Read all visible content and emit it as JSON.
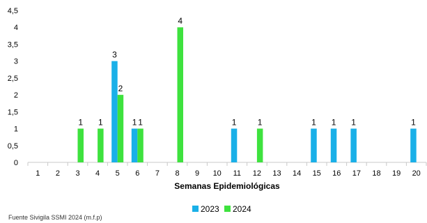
{
  "chart_data": {
    "type": "bar",
    "title": "",
    "xlabel": "Semanas Epidemiológicas",
    "ylabel": "",
    "ylim": [
      0,
      4.5
    ],
    "y_ticks": [
      "0",
      "0,5",
      "1",
      "1,5",
      "2",
      "2,5",
      "3",
      "3,5",
      "4",
      "4,5"
    ],
    "categories": [
      "1",
      "2",
      "3",
      "4",
      "5",
      "6",
      "7",
      "8",
      "9",
      "10",
      "11",
      "12",
      "13",
      "14",
      "15",
      "16",
      "17",
      "18",
      "19",
      "20"
    ],
    "series": [
      {
        "name": "2023",
        "color": "#1ab0e8",
        "values": [
          0,
          0,
          0,
          0,
          3,
          1,
          0,
          0,
          0,
          0,
          1,
          0,
          0,
          0,
          1,
          1,
          1,
          0,
          0,
          1
        ]
      },
      {
        "name": "2024",
        "color": "#3ee23e",
        "values": [
          0,
          0,
          1,
          1,
          2,
          1,
          0,
          4,
          0,
          0,
          0,
          1,
          0,
          0,
          0,
          0,
          0,
          0,
          0,
          0
        ]
      }
    ],
    "grid": false,
    "legend": "bottom-center"
  },
  "footnote": "Fuente Sivigila SSMI 2024  (m.f.p)"
}
